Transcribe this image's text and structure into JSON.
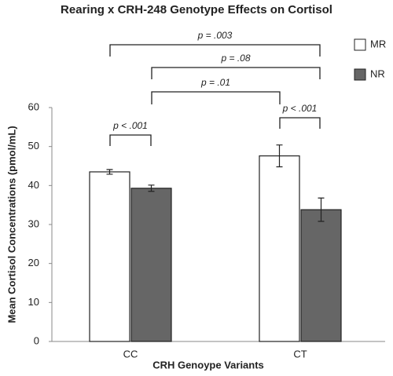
{
  "chart_data": {
    "type": "bar",
    "title": "Rearing x CRH-248 Genotype Effects on Cortisol",
    "x_label": "CRH Genoype Variants",
    "y_label": "Mean Cortisol Concentrations (pmol/mL)",
    "categories": [
      "CC",
      "CT"
    ],
    "series": [
      {
        "name": "MR",
        "color": "#ffffff",
        "values": [
          43.5,
          47.6
        ],
        "errors": [
          0.6,
          2.8
        ]
      },
      {
        "name": "NR",
        "color": "#666666",
        "values": [
          39.3,
          33.8
        ],
        "errors": [
          0.8,
          3.0
        ]
      }
    ],
    "ylim": [
      0,
      60
    ],
    "yticks": [
      0,
      10,
      20,
      30,
      40,
      50,
      60
    ],
    "grid": false,
    "legend": "upper right",
    "annotations": [
      "p = .003",
      "p = .08",
      "p = .01",
      "p < .001",
      "p < .001"
    ]
  }
}
